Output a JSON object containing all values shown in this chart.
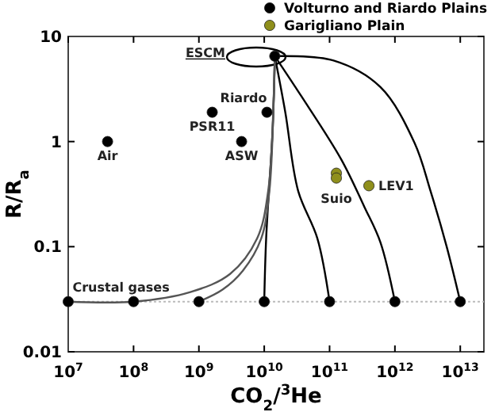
{
  "chart_data": {
    "type": "line",
    "xlabel": "CO$_{2}$/$^{3}$He",
    "ylabel": "R/R$_{a}$",
    "log": "xy",
    "legend": "top right",
    "grid": false,
    "xlim": [
      10000000.0,
      23000000000000.0
    ],
    "ylim": [
      0.01,
      10
    ],
    "xticks": [
      {
        "value": 10000000.0,
        "label": "10$^{7}$"
      },
      {
        "value": 100000000.0,
        "label": "10$^{8}$"
      },
      {
        "value": 1000000000.0,
        "label": "10$^{9}$"
      },
      {
        "value": 10000000000.0,
        "label": "10$^{10}$"
      },
      {
        "value": 100000000000.0,
        "label": "10$^{11}$"
      },
      {
        "value": 1000000000000.0,
        "label": "10$^{12}$"
      },
      {
        "value": 10000000000000.0,
        "label": "10$^{13}$"
      }
    ],
    "yticks": [
      0.01,
      0.1,
      1,
      10
    ],
    "ref_lines": [
      {
        "axis": "y",
        "value": 0.03,
        "color": "#bbbbbb",
        "line_style": "dotted"
      }
    ],
    "series": [
      {
        "color": "#000000",
        "marker": "none",
        "x": [
          14500000000.0,
          115000000000.0,
          600000000000.0,
          2000000000000.0,
          3500000000000.0,
          6200000000000.0,
          10000000000000.0
        ],
        "values": [
          6.5,
          5.9,
          3.3,
          0.97,
          0.34,
          0.1,
          0.03
        ]
      },
      {
        "color": "#000000",
        "marker": "none",
        "x": [
          14500000000.0,
          37000000000.0,
          150000000000.0,
          340000000000.0,
          600000000000.0,
          1000000000000.0
        ],
        "values": [
          6.5,
          2.7,
          0.68,
          0.24,
          0.11,
          0.03
        ]
      },
      {
        "color": "#000000",
        "marker": "none",
        "x": [
          14500000000.0,
          21000000000.0,
          33000000000.0,
          65000000000.0,
          100000000000.0
        ],
        "values": [
          6.5,
          1.9,
          0.34,
          0.12,
          0.03
        ]
      },
      {
        "color": "#000000",
        "marker": "none",
        "x": [
          14500000000.0,
          13500000000.0,
          10700000000.0,
          10000000000.0
        ],
        "values": [
          6.5,
          1.37,
          0.12,
          0.03
        ]
      },
      {
        "color": "#555555",
        "marker": "none",
        "x": [
          14500000000.0,
          14000000000.0,
          12000000000.0,
          9000000000.0,
          4700000000.0,
          2300000000.0,
          1000000000.0
        ],
        "values": [
          6.5,
          2.75,
          0.34,
          0.12,
          0.059,
          0.039,
          0.03
        ]
      },
      {
        "color": "#555555",
        "marker": "none",
        "x": [
          14500000000.0,
          14000000000.0,
          11500000000.0,
          7800000000.0,
          3000000000.0,
          740000000.0,
          100000000.0,
          10000000.0
        ],
        "values": [
          6.5,
          2.75,
          0.34,
          0.12,
          0.055,
          0.037,
          0.03,
          0.03
        ]
      },
      {
        "type": "scatter",
        "color": "#000000",
        "marker": "circle",
        "x": [
          10000000.0,
          100000000.0,
          1000000000.0,
          10000000000.0,
          100000000000.0,
          1000000000000.0,
          10000000000000.0
        ],
        "values": [
          0.03,
          0.03,
          0.03,
          0.03,
          0.03,
          0.03,
          0.03
        ]
      },
      {
        "type": "scatter",
        "name": "Volturno and Riardo Plains",
        "color": "#000000",
        "marker": "circle",
        "x": [
          40000000.0,
          1600000000.0,
          4500000000.0,
          11000000000.0,
          14500000000.0
        ],
        "values": [
          1,
          1.9,
          1,
          1.9,
          6.5
        ]
      },
      {
        "type": "scatter",
        "name": "Garigliano Plain",
        "color": "#8f8f1c",
        "marker": "circle",
        "x": [
          127000000000.0,
          127000000000.0,
          400000000000.0
        ],
        "values": [
          0.5,
          0.45,
          0.38
        ]
      }
    ],
    "annotations": [
      {
        "text": "Air",
        "x": 40000000.0,
        "y": 1
      },
      {
        "text": "PSR11",
        "x": 1600000000.0,
        "y": 1.9
      },
      {
        "text": "ASW",
        "x": 4500000000.0,
        "y": 1
      },
      {
        "text": "Riardo",
        "x": 11000000000.0,
        "y": 1.9
      },
      "ESCM",
      {
        "text": "Suio",
        "x": 127000000000.0,
        "y": 0.5
      },
      {
        "text": "LEV1",
        "x": 400000000000.0,
        "y": 0.38
      },
      {
        "text": "Crustal gases",
        "x": 46000000.0,
        "y": 0.03
      }
    ]
  }
}
